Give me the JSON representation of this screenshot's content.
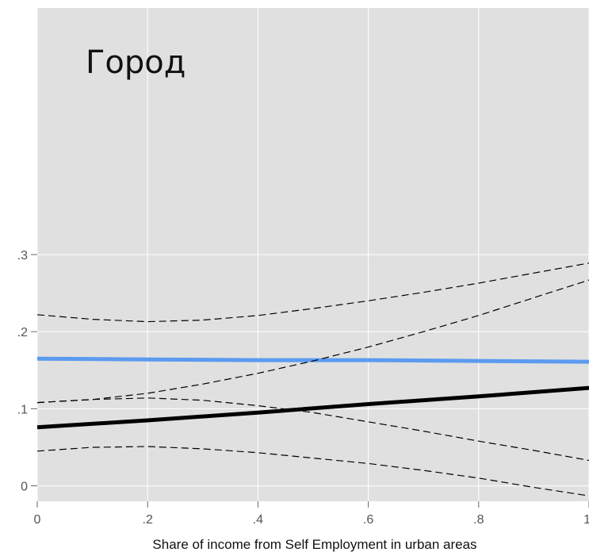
{
  "chart_data": {
    "type": "line",
    "title": "Город",
    "xlabel": "Share of income from Self Employment in urban areas",
    "ylabel": "",
    "xlim": [
      0,
      1
    ],
    "ylim": [
      -0.02,
      0.62
    ],
    "grid": true,
    "background": "#e0e0e0",
    "grid_color": "#ffffff",
    "x_ticks": [
      {
        "value": 0,
        "label": "0"
      },
      {
        "value": 0.2,
        "label": ".2"
      },
      {
        "value": 0.4,
        "label": ".4"
      },
      {
        "value": 0.6,
        "label": ".6"
      },
      {
        "value": 0.8,
        "label": ".8"
      },
      {
        "value": 1,
        "label": "1"
      }
    ],
    "y_ticks": [
      {
        "value": 0,
        "label": "0"
      },
      {
        "value": 0.1,
        "label": ".1"
      },
      {
        "value": 0.2,
        "label": ".2"
      },
      {
        "value": 0.3,
        "label": ".3"
      }
    ],
    "series": [
      {
        "style": "solid",
        "color": "#5b9bf0",
        "width": 5,
        "x": [
          0,
          0.2,
          0.4,
          0.6,
          0.8,
          1
        ],
        "y": [
          0.165,
          0.164,
          0.163,
          0.163,
          0.162,
          0.161
        ]
      },
      {
        "style": "dashed",
        "color": "#000000",
        "width": 1.2,
        "x": [
          0,
          0.1,
          0.2,
          0.3,
          0.4,
          0.5,
          0.6,
          0.7,
          0.8,
          0.9,
          1
        ],
        "y": [
          0.222,
          0.216,
          0.213,
          0.215,
          0.221,
          0.23,
          0.24,
          0.251,
          0.263,
          0.276,
          0.289
        ]
      },
      {
        "style": "dashed",
        "color": "#000000",
        "width": 1.2,
        "x": [
          0,
          0.1,
          0.2,
          0.3,
          0.4,
          0.5,
          0.6,
          0.7,
          0.8,
          0.9,
          1
        ],
        "y": [
          0.108,
          0.112,
          0.114,
          0.111,
          0.104,
          0.095,
          0.083,
          0.071,
          0.058,
          0.046,
          0.033
        ]
      },
      {
        "style": "solid",
        "color": "#000000",
        "width": 5,
        "x": [
          0,
          0.2,
          0.4,
          0.6,
          0.8,
          1
        ],
        "y": [
          0.076,
          0.085,
          0.095,
          0.106,
          0.116,
          0.127
        ]
      },
      {
        "style": "dashed",
        "color": "#000000",
        "width": 1.2,
        "x": [
          0,
          0.1,
          0.2,
          0.3,
          0.4,
          0.5,
          0.6,
          0.7,
          0.8,
          0.9,
          1
        ],
        "y": [
          0.108,
          0.112,
          0.12,
          0.132,
          0.146,
          0.162,
          0.18,
          0.2,
          0.221,
          0.244,
          0.267
        ]
      },
      {
        "style": "dashed",
        "color": "#000000",
        "width": 1.2,
        "x": [
          0,
          0.1,
          0.2,
          0.3,
          0.4,
          0.5,
          0.6,
          0.7,
          0.8,
          0.9,
          1
        ],
        "y": [
          0.045,
          0.05,
          0.051,
          0.048,
          0.043,
          0.036,
          0.029,
          0.02,
          0.01,
          -0.002,
          -0.013
        ]
      }
    ]
  }
}
